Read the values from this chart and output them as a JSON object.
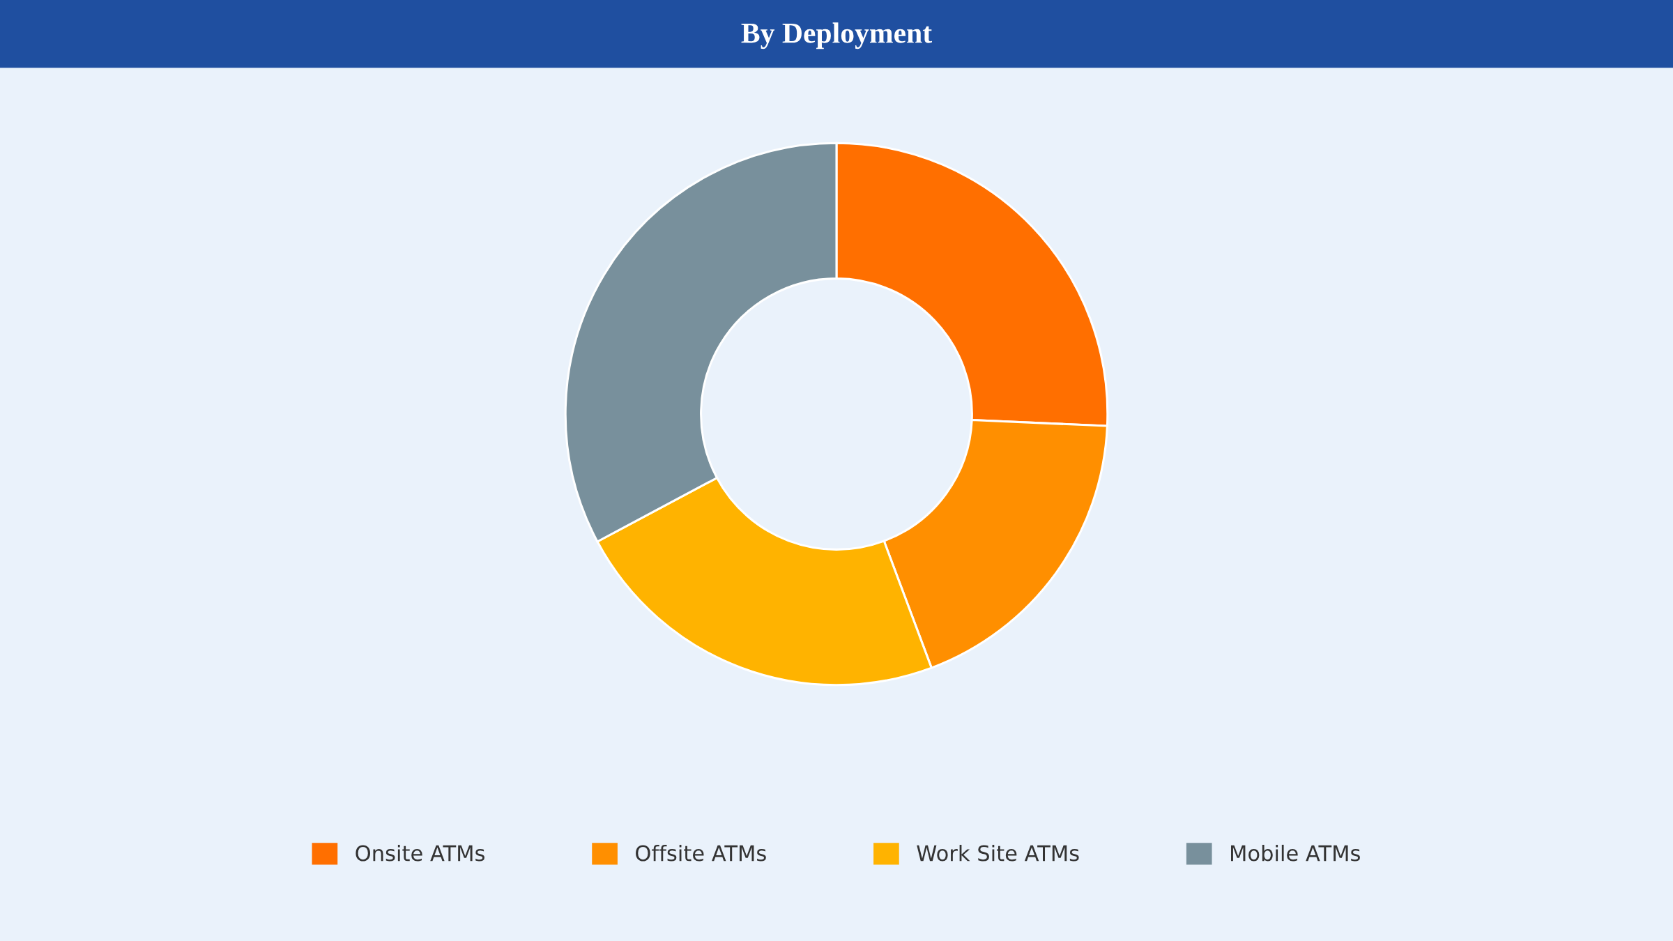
{
  "chart_data": {
    "type": "donut",
    "title": "By Deployment",
    "categories": [
      "Onsite ATMs",
      "Offsite ATMs",
      "Work Site ATMs",
      "Mobile ATMs"
    ],
    "values": [
      25.7,
      18.6,
      22.9,
      32.8
    ],
    "colors": [
      "#ff6f00",
      "#ff8f00",
      "#ffb300",
      "#78909c"
    ],
    "legend": "bottom"
  }
}
